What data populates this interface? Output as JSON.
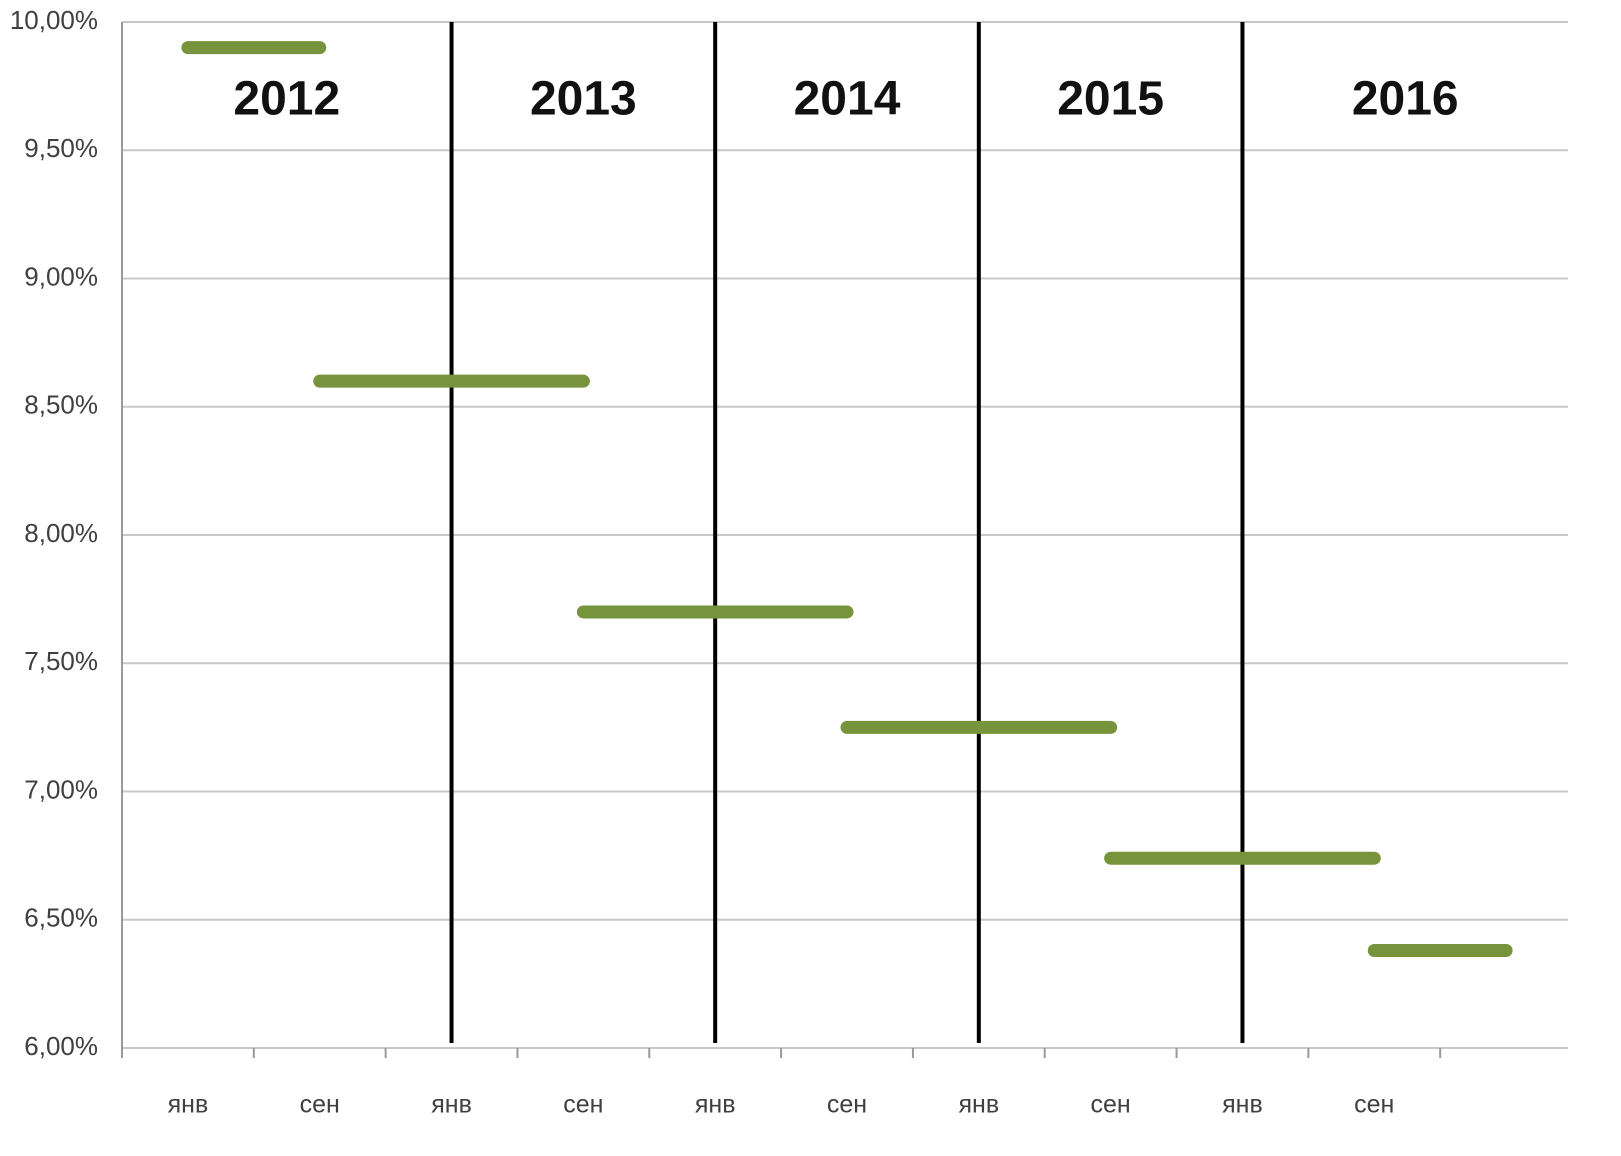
{
  "chart_data": {
    "type": "line",
    "categories": [
      "янв",
      "сен",
      "янв",
      "сен",
      "янв",
      "сен",
      "янв",
      "сен",
      "янв",
      "сен",
      null
    ],
    "segments": [
      {
        "start": 0,
        "end": 1,
        "value": 9.9
      },
      {
        "start": 1,
        "end": 3,
        "value": 8.6
      },
      {
        "start": 3,
        "end": 5,
        "value": 7.7
      },
      {
        "start": 5,
        "end": 7,
        "value": 7.25
      },
      {
        "start": 7,
        "end": 9,
        "value": 6.74
      },
      {
        "start": 9,
        "end": 10,
        "value": 6.38
      }
    ],
    "color": "#77933c",
    "years": [
      2012,
      2013,
      2014,
      2015,
      2016
    ],
    "year_dividers": [
      2,
      4,
      6,
      8
    ],
    "ylim": [
      6,
      10
    ],
    "yticks": [
      {
        "value": 6,
        "label": "6,00%"
      },
      {
        "value": 6.5,
        "label": "6,50%"
      },
      {
        "value": 7,
        "label": "7,00%"
      },
      {
        "value": 7.5,
        "label": "7,50%"
      },
      {
        "value": 8,
        "label": "8,00%"
      },
      {
        "value": 8.5,
        "label": "8,50%"
      },
      {
        "value": 9,
        "label": "9,00%"
      },
      {
        "value": 9.5,
        "label": "9,50%"
      },
      {
        "value": 10,
        "label": "10,00%"
      }
    ],
    "grid": true
  }
}
